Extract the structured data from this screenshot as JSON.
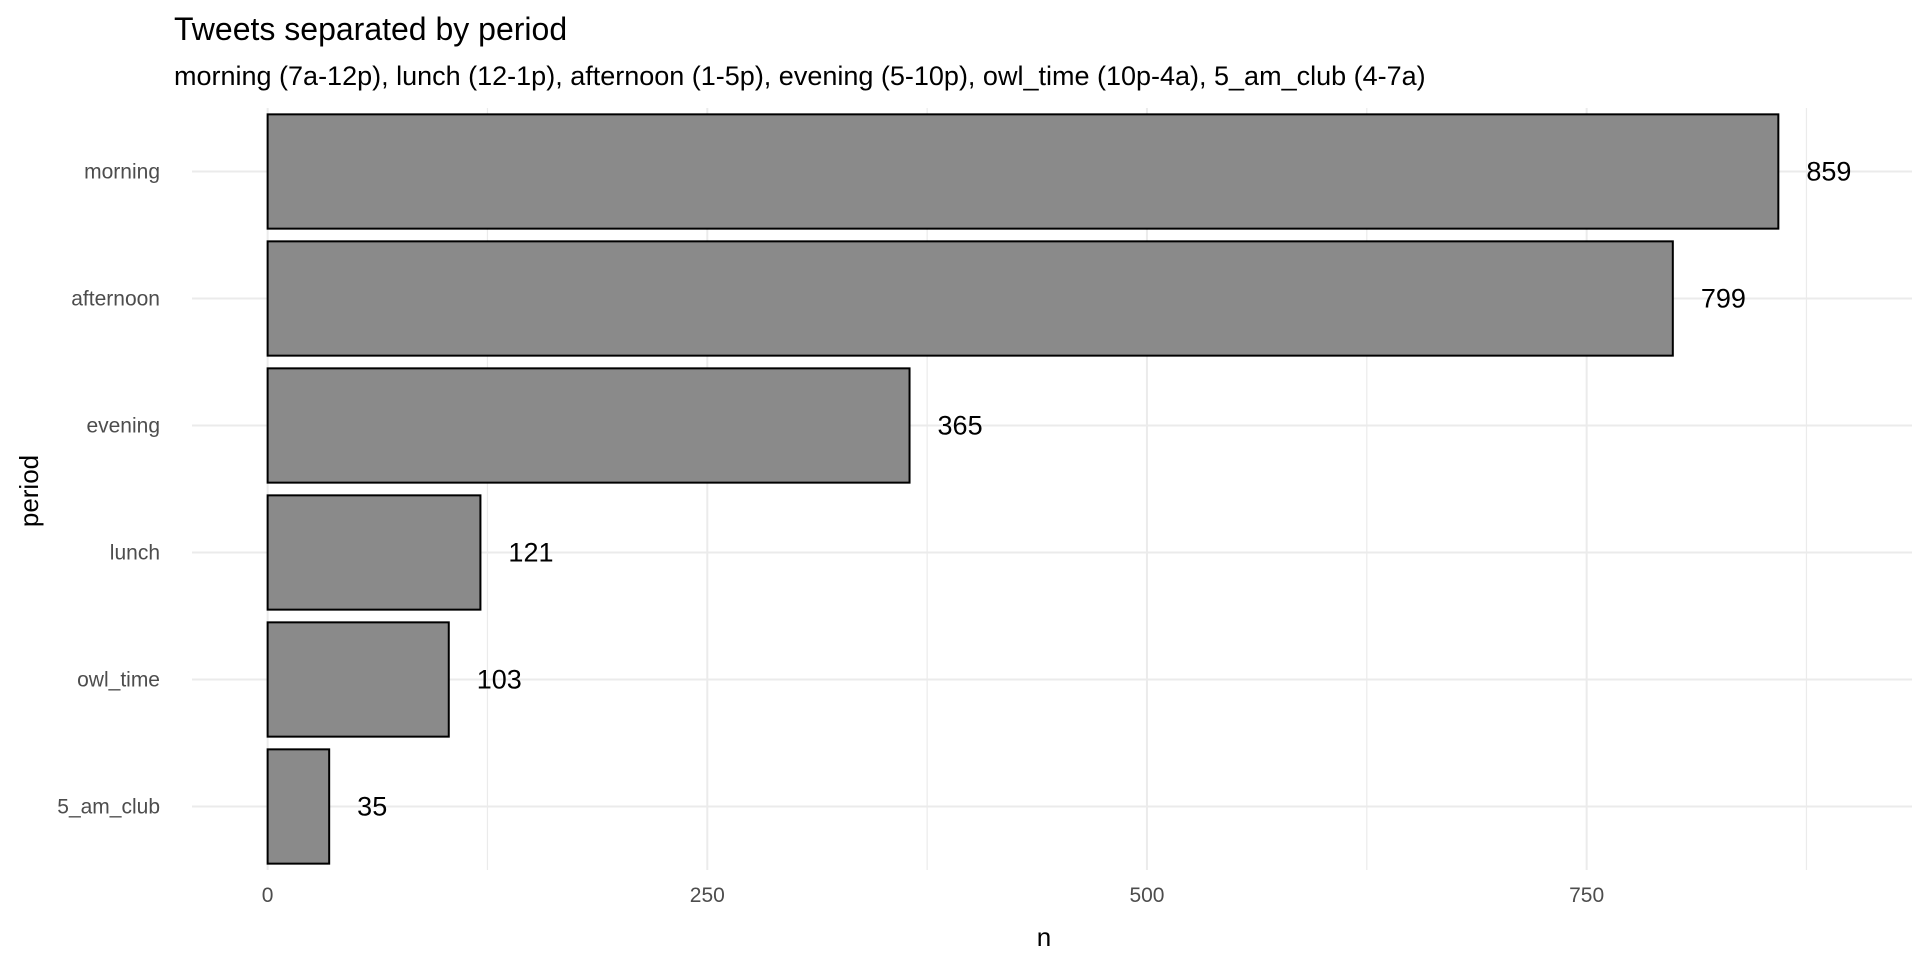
{
  "chart_data": {
    "type": "bar",
    "orientation": "horizontal",
    "title": "Tweets separated by period",
    "subtitle": "morning (7a-12p), lunch (12-1p), afternoon (1-5p), evening (5-10p), owl_time (10p-4a), 5_am_club (4-7a)",
    "xlabel": "n",
    "ylabel": "period",
    "categories": [
      "morning",
      "afternoon",
      "evening",
      "lunch",
      "owl_time",
      "5_am_club"
    ],
    "values": [
      859,
      799,
      365,
      121,
      103,
      35
    ],
    "data_labels": [
      "859",
      "799",
      "365",
      "121",
      "103",
      "35"
    ],
    "xlim": [
      -43,
      935
    ],
    "x_ticks": [
      0,
      250,
      500,
      750
    ],
    "x_tick_labels": [
      "0",
      "250",
      "500",
      "750"
    ],
    "x_minor_ticks": [
      125,
      375,
      625,
      875
    ],
    "grid": true,
    "legend": "none",
    "colors": {
      "bar_fill": "#8a8a8a",
      "bar_stroke": "#000000",
      "grid": "#ebebeb",
      "background": "#ffffff"
    }
  }
}
